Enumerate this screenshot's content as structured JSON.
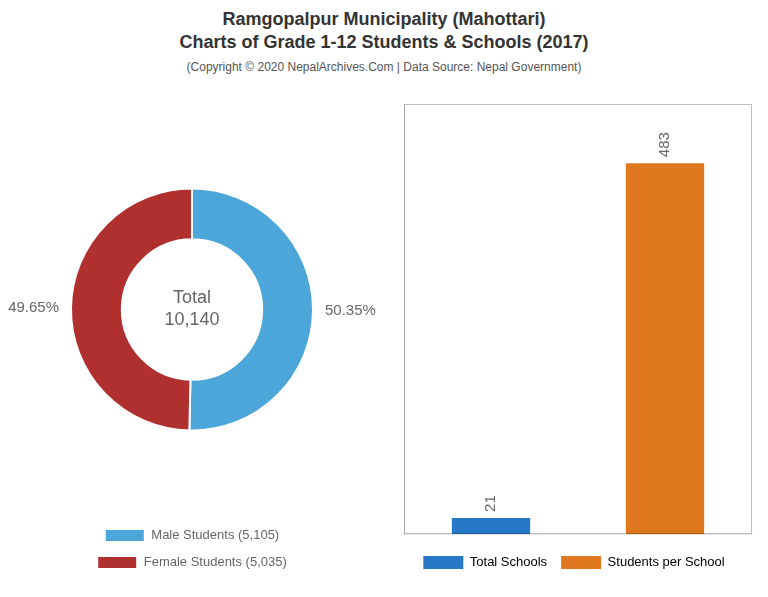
{
  "chart_data": [
    {
      "type": "doughnut",
      "title": [
        "Ramgopalpur Municipality (Mahottari)",
        "Charts of Grade 1-12 Students & Schools (2017)"
      ],
      "subtitle": "(Copyright © 2020 NepalArchives.Com | Data Source: Nepal Government)",
      "categories": [
        "Male Students (5,105)",
        "Female Students (5,035)"
      ],
      "values": [
        50.35,
        49.65
      ],
      "value_labels": [
        "50.35%",
        "49.65%"
      ],
      "colors": [
        "#4da6d9",
        "#b03030"
      ],
      "data_labels": true,
      "annotation": "Total\n10,140",
      "legend": "bottom"
    },
    {
      "type": "bar",
      "categories": [
        "Total Schools",
        "Students per School"
      ],
      "values": [
        21,
        483
      ],
      "colors": [
        "#2878c8",
        "#e07820"
      ],
      "ylim": [
        0,
        560
      ],
      "grid": false,
      "tick_labels": false,
      "data_labels": true,
      "legend": "bottom"
    }
  ]
}
